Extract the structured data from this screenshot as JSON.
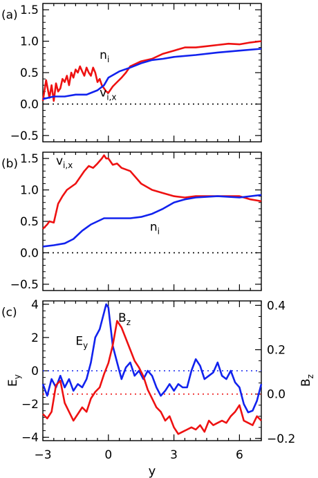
{
  "colors": {
    "red": "#ee1111",
    "blue": "#1122ee",
    "axis": "#000000"
  },
  "chart_data": [
    {
      "type": "line",
      "panel_label": "(a)",
      "xlim": [
        -3,
        7
      ],
      "ylim": [
        -0.6,
        1.6
      ],
      "y_ticks": [
        -0.5,
        0.0,
        0.5,
        1.0,
        1.5
      ],
      "y_tick_labels": [
        "−0.5",
        "0.0",
        "0.5",
        "1.0",
        "1.5"
      ],
      "reference_line": {
        "y": 0.0,
        "style": "dotted",
        "color": "black"
      },
      "series": [
        {
          "name": "n_i",
          "color": "red",
          "x": [
            -3.0,
            -2.85,
            -2.7,
            -2.6,
            -2.5,
            -2.4,
            -2.3,
            -2.2,
            -2.1,
            -2.0,
            -1.9,
            -1.8,
            -1.7,
            -1.6,
            -1.5,
            -1.4,
            -1.3,
            -1.2,
            -1.1,
            -1.0,
            -0.9,
            -0.8,
            -0.7,
            -0.6,
            -0.5,
            -0.4,
            -0.3,
            -0.2,
            -0.1,
            0.0,
            0.2,
            0.4,
            0.6,
            0.8,
            1.0,
            1.5,
            2.0,
            2.5,
            3.0,
            3.5,
            4.0,
            4.5,
            5.0,
            5.5,
            6.0,
            6.5,
            7.0
          ],
          "y": [
            0.05,
            0.38,
            0.1,
            0.3,
            0.05,
            0.33,
            0.2,
            0.25,
            0.4,
            0.35,
            0.45,
            0.3,
            0.5,
            0.42,
            0.55,
            0.5,
            0.6,
            0.52,
            0.45,
            0.58,
            0.5,
            0.45,
            0.58,
            0.5,
            0.35,
            0.4,
            0.3,
            0.25,
            0.2,
            0.18,
            0.28,
            0.35,
            0.42,
            0.5,
            0.6,
            0.68,
            0.72,
            0.8,
            0.85,
            0.9,
            0.9,
            0.92,
            0.94,
            0.96,
            0.95,
            0.98,
            1.0
          ]
        },
        {
          "name": "v_i,x",
          "color": "blue",
          "x": [
            -3.0,
            -2.5,
            -2.0,
            -1.5,
            -1.0,
            -0.5,
            -0.2,
            0.0,
            0.5,
            1.0,
            1.5,
            2.0,
            2.5,
            3.0,
            4.0,
            5.0,
            6.0,
            7.0
          ],
          "y": [
            0.08,
            0.12,
            0.12,
            0.15,
            0.15,
            0.22,
            0.3,
            0.42,
            0.52,
            0.58,
            0.65,
            0.7,
            0.72,
            0.75,
            0.78,
            0.82,
            0.85,
            0.88
          ]
        }
      ],
      "annotations": [
        {
          "text": "n",
          "sub": "i",
          "x": -0.4,
          "y": 0.72,
          "color": "black"
        },
        {
          "text": "v",
          "sub": "i,x",
          "x": -0.4,
          "y": 0.12,
          "color": "black"
        }
      ]
    },
    {
      "type": "line",
      "panel_label": "(b)",
      "xlim": [
        -3,
        7
      ],
      "ylim": [
        -0.6,
        1.6
      ],
      "y_ticks": [
        -0.5,
        0.0,
        0.5,
        1.0,
        1.5
      ],
      "y_tick_labels": [
        "−0.5",
        "0.0",
        "0.5",
        "1.0",
        "1.5"
      ],
      "reference_line": {
        "y": 0.0,
        "style": "dotted",
        "color": "black"
      },
      "series": [
        {
          "name": "v_i,x",
          "color": "red",
          "x": [
            -3.0,
            -2.8,
            -2.7,
            -2.5,
            -2.3,
            -2.1,
            -1.9,
            -1.7,
            -1.5,
            -1.3,
            -1.1,
            -0.9,
            -0.7,
            -0.5,
            -0.3,
            -0.2,
            -0.1,
            0.0,
            0.2,
            0.4,
            0.6,
            1.0,
            1.5,
            2.0,
            2.5,
            3.0,
            3.5,
            4.0,
            5.0,
            6.0,
            6.5,
            7.0
          ],
          "y": [
            0.38,
            0.45,
            0.5,
            0.48,
            0.78,
            0.9,
            1.0,
            1.05,
            1.1,
            1.2,
            1.3,
            1.38,
            1.35,
            1.42,
            1.5,
            1.55,
            1.5,
            1.5,
            1.4,
            1.42,
            1.35,
            1.3,
            1.1,
            1.0,
            0.95,
            0.9,
            0.88,
            0.9,
            0.9,
            0.9,
            0.85,
            0.82
          ]
        },
        {
          "name": "n_i",
          "color": "blue",
          "x": [
            -3.0,
            -2.5,
            -2.0,
            -1.6,
            -1.2,
            -0.8,
            -0.5,
            -0.2,
            0.0,
            0.5,
            1.0,
            1.5,
            2.0,
            2.5,
            3.0,
            3.5,
            4.0,
            5.0,
            6.0,
            7.0
          ],
          "y": [
            0.1,
            0.12,
            0.15,
            0.22,
            0.35,
            0.45,
            0.5,
            0.55,
            0.55,
            0.55,
            0.55,
            0.57,
            0.62,
            0.7,
            0.8,
            0.85,
            0.88,
            0.9,
            0.88,
            0.92
          ]
        }
      ],
      "annotations": [
        {
          "text": "v",
          "sub": "i,x",
          "x": -2.4,
          "y": 1.4,
          "color": "black"
        },
        {
          "text": "n",
          "sub": "i",
          "x": 1.9,
          "y": 0.35,
          "color": "black"
        }
      ]
    },
    {
      "type": "line",
      "panel_label": "(c)",
      "xlim": [
        -3,
        7
      ],
      "ylim": [
        -4.2,
        4.2
      ],
      "x_ticks": [
        -3,
        0,
        3,
        6
      ],
      "x_tick_labels": [
        "−3",
        "0",
        "3",
        "6"
      ],
      "xlabel": "y",
      "y_ticks": [
        -4,
        -2,
        0,
        2,
        4
      ],
      "y_tick_labels": [
        "−4",
        "−2",
        "0",
        "2",
        "4"
      ],
      "ylabel": "E",
      "ylabel_sub": "y",
      "y2lim": [
        -0.21,
        0.42
      ],
      "y2_ticks": [
        -0.2,
        0.0,
        0.2,
        0.4
      ],
      "y2_tick_labels": [
        "−0.2",
        "0.0",
        "0.2",
        "0.4"
      ],
      "y2label": "B",
      "y2label_sub": "z",
      "reference_lines": [
        {
          "y": 0,
          "axis": "left",
          "style": "dotted",
          "color": "blue"
        },
        {
          "y": 0.0,
          "axis": "right",
          "style": "dotted",
          "color": "red"
        }
      ],
      "series": [
        {
          "name": "E_y",
          "color": "blue",
          "axis": "left",
          "x": [
            -3.0,
            -2.8,
            -2.6,
            -2.4,
            -2.2,
            -2.0,
            -1.8,
            -1.6,
            -1.4,
            -1.2,
            -1.0,
            -0.8,
            -0.6,
            -0.4,
            -0.2,
            -0.1,
            0.0,
            0.2,
            0.4,
            0.6,
            0.8,
            1.0,
            1.2,
            1.4,
            1.6,
            1.8,
            2.0,
            2.2,
            2.4,
            2.6,
            2.8,
            3.0,
            3.2,
            3.4,
            3.6,
            3.8,
            4.0,
            4.2,
            4.4,
            4.6,
            4.8,
            5.0,
            5.2,
            5.4,
            5.6,
            5.8,
            6.0,
            6.2,
            6.4,
            6.6,
            6.8,
            7.0
          ],
          "y": [
            -0.8,
            -1.5,
            -0.5,
            -1.0,
            -0.3,
            -1.0,
            -0.5,
            -1.2,
            -0.8,
            -1.0,
            -0.5,
            0.5,
            2.0,
            2.5,
            3.5,
            4.0,
            3.8,
            1.5,
            0.5,
            -0.5,
            0.2,
            0.5,
            -0.3,
            0.0,
            -0.5,
            0.0,
            -0.3,
            -1.0,
            -1.5,
            -1.2,
            -0.8,
            -1.2,
            -0.8,
            -1.0,
            -1.0,
            0.0,
            0.7,
            0.3,
            -0.5,
            -0.3,
            -0.1,
            0.5,
            -0.3,
            -0.5,
            0.0,
            -0.7,
            -1.0,
            -2.0,
            -2.5,
            -2.4,
            -1.8,
            -0.8
          ]
        },
        {
          "name": "B_z",
          "color": "red",
          "axis": "right",
          "x": [
            -3.0,
            -2.8,
            -2.6,
            -2.4,
            -2.2,
            -2.0,
            -1.8,
            -1.6,
            -1.4,
            -1.2,
            -1.0,
            -0.8,
            -0.6,
            -0.4,
            -0.2,
            0.0,
            0.2,
            0.4,
            0.6,
            0.8,
            1.0,
            1.2,
            1.4,
            1.6,
            1.8,
            2.0,
            2.2,
            2.4,
            2.6,
            2.8,
            3.0,
            3.2,
            3.4,
            3.6,
            3.8,
            4.0,
            4.2,
            4.4,
            4.6,
            4.8,
            5.0,
            5.2,
            5.4,
            5.6,
            5.8,
            6.0,
            6.2,
            6.4,
            6.6,
            6.8,
            7.0
          ],
          "y": [
            -0.09,
            -0.11,
            -0.08,
            0.04,
            0.06,
            -0.04,
            -0.08,
            -0.12,
            -0.09,
            -0.06,
            -0.08,
            -0.02,
            0.01,
            0.03,
            0.09,
            0.14,
            0.22,
            0.33,
            0.3,
            0.25,
            0.2,
            0.15,
            0.12,
            0.08,
            0.02,
            -0.02,
            -0.06,
            -0.08,
            -0.12,
            -0.1,
            -0.15,
            -0.18,
            -0.17,
            -0.16,
            -0.15,
            -0.16,
            -0.14,
            -0.17,
            -0.12,
            -0.14,
            -0.13,
            -0.12,
            -0.13,
            -0.1,
            -0.08,
            -0.05,
            -0.12,
            -0.13,
            -0.14,
            -0.1,
            -0.12
          ]
        }
      ],
      "annotations": [
        {
          "text": "E",
          "sub": "y",
          "x": -1.5,
          "y": 1.55,
          "color": "black"
        },
        {
          "text": "B",
          "sub": "z",
          "x": 0.45,
          "y": 2.95,
          "color": "black"
        }
      ]
    }
  ]
}
